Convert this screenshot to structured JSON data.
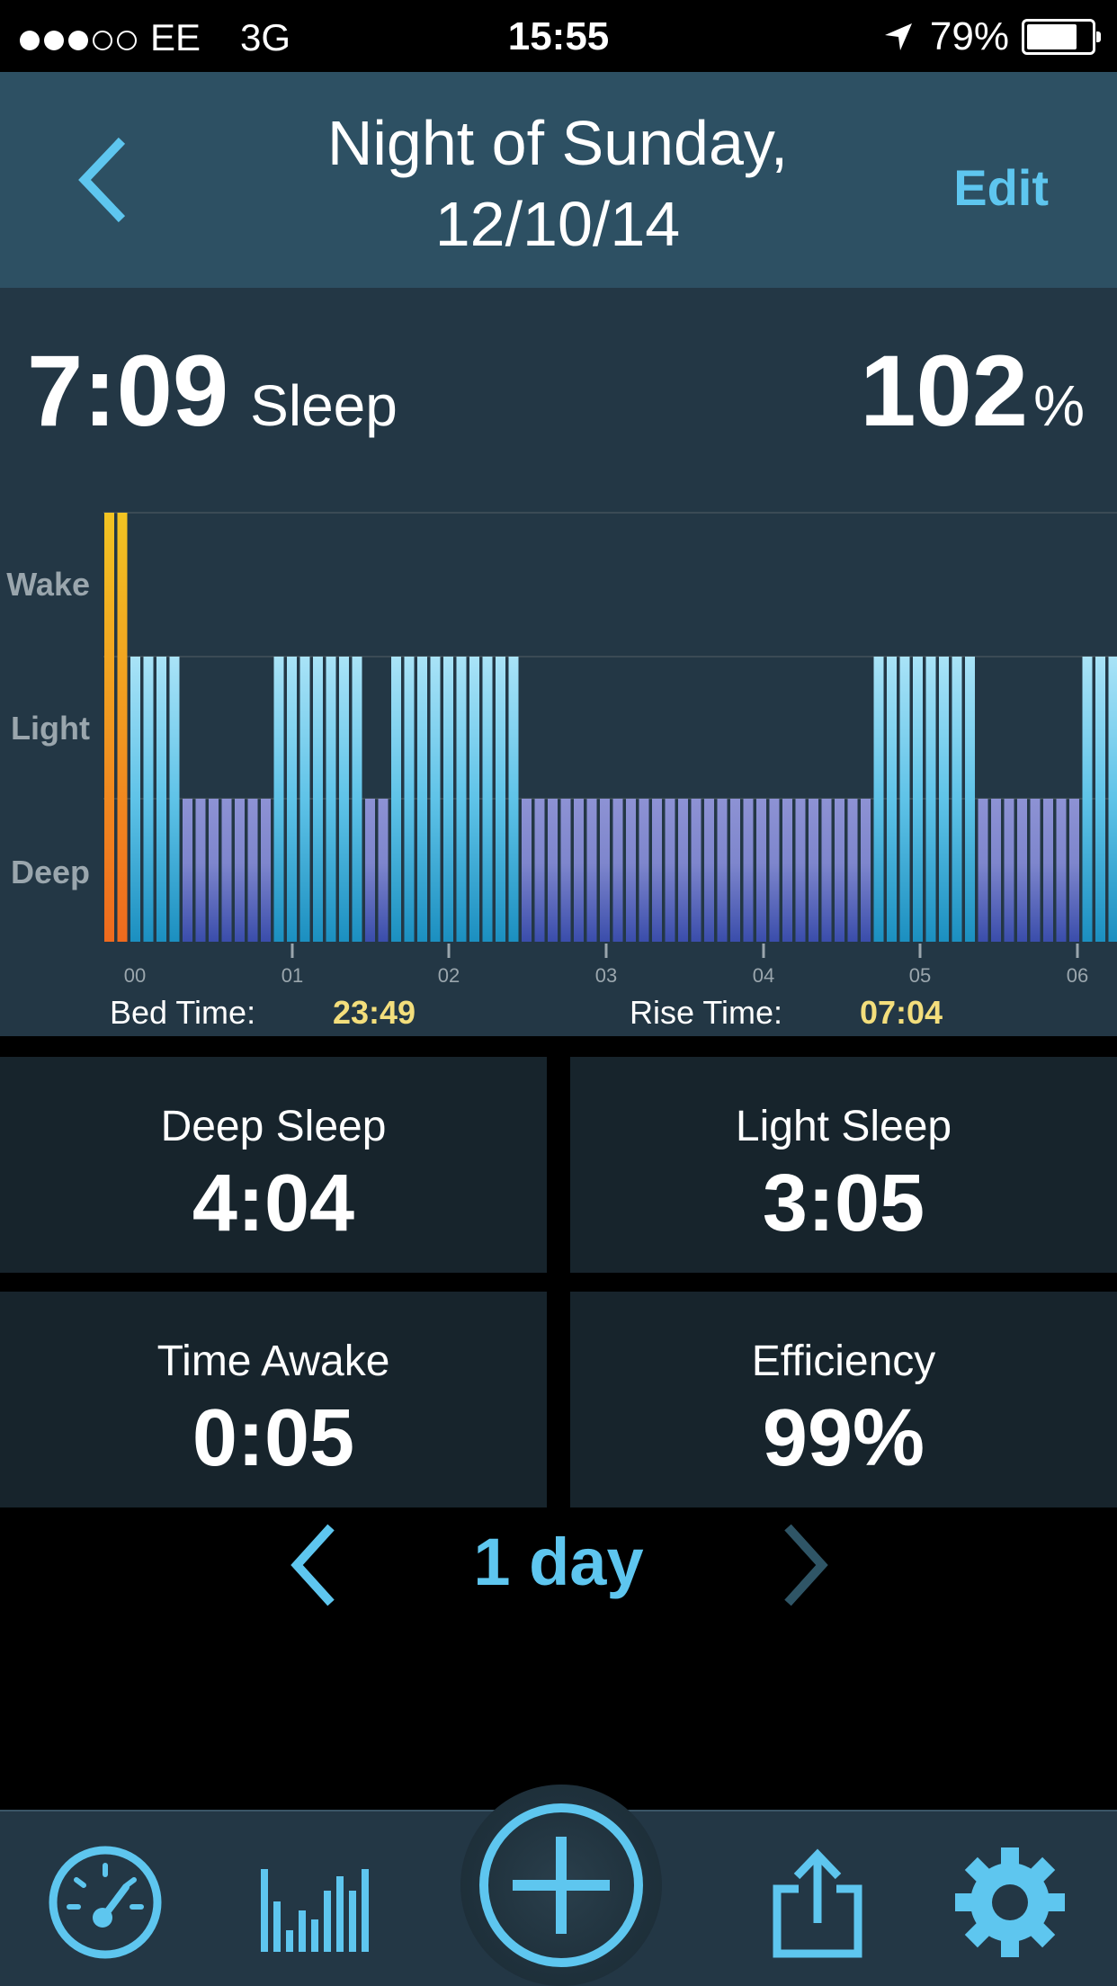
{
  "status_bar": {
    "carrier": "EE",
    "network": "3G",
    "time": "15:55",
    "battery": "79%",
    "battery_level": 0.79,
    "signal_bars": 3,
    "signal_max": 5
  },
  "header": {
    "title_line1": "Night of Sunday,",
    "title_line2": "12/10/14",
    "edit_label": "Edit"
  },
  "summary": {
    "total_sleep": "7:09",
    "sleep_word": "Sleep",
    "percent_value": "102",
    "percent_unit": "%"
  },
  "chart_data": {
    "type": "bar",
    "y_categories": [
      "Deep",
      "Light",
      "Wake"
    ],
    "x_ticks": [
      "00",
      "01",
      "02",
      "03",
      "04",
      "05",
      "06"
    ],
    "stages": [
      {
        "stage": "wake",
        "count": 2
      },
      {
        "stage": "light",
        "count": 4
      },
      {
        "stage": "deep",
        "count": 7
      },
      {
        "stage": "light",
        "count": 7
      },
      {
        "stage": "deep",
        "count": 2
      },
      {
        "stage": "light",
        "count": 10
      },
      {
        "stage": "deep",
        "count": 27
      },
      {
        "stage": "light",
        "count": 8
      },
      {
        "stage": "deep",
        "count": 8
      },
      {
        "stage": "light",
        "count": 3
      }
    ],
    "colors": {
      "wake_top": "#f2c422",
      "wake_bottom": "#ef6a1e",
      "light_top": "#a9e3f7",
      "light_bottom": "#1b8fc0",
      "deep_top": "#8d92d4",
      "deep_bottom": "#3a4dab",
      "gridline": "#3b4b55",
      "axis": "#9aa6ad"
    }
  },
  "times": {
    "bed_label": "Bed Time:",
    "bed_value": "23:49",
    "rise_label": "Rise Time:",
    "rise_value": "07:04"
  },
  "stats": {
    "deep_label": "Deep Sleep",
    "deep_value": "4:04",
    "light_label": "Light Sleep",
    "light_value": "3:05",
    "awake_label": "Time Awake",
    "awake_value": "0:05",
    "efficiency_label": "Efficiency",
    "efficiency_value": "99%"
  },
  "period_nav": {
    "label": "1 day"
  },
  "tab_bar": {
    "items": [
      "speedometer-icon",
      "bar-chart-icon",
      "add-icon",
      "share-icon",
      "gear-icon"
    ],
    "accent": "#5ec6ef"
  }
}
